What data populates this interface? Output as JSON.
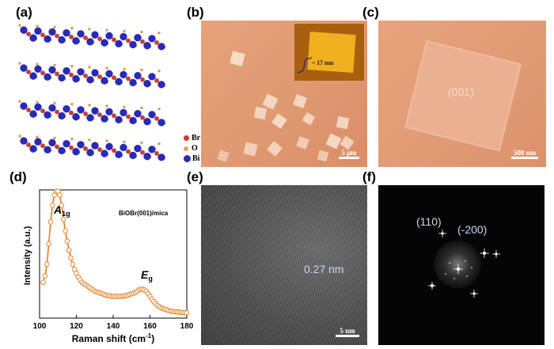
{
  "panels": {
    "a": {
      "label": "(a)",
      "legend": [
        {
          "symbol": "Br",
          "color": "#d43a2a"
        },
        {
          "symbol": "O",
          "color": "#e8a060"
        },
        {
          "symbol": "Bi",
          "color": "#2a2ab8"
        }
      ]
    },
    "b": {
      "label": "(b)",
      "inset_height": "~ 17 nm",
      "scale_bar": "5 μm"
    },
    "c": {
      "label": "(c)",
      "facet": "(001)",
      "scale_bar": "500 nm"
    },
    "d": {
      "label": "(d)"
    },
    "e": {
      "label": "(e)",
      "lattice_spacing": "0.27 nm",
      "scale_bar": "5 nm"
    },
    "f": {
      "label": "(f)",
      "spot_1": "(110)",
      "spot_2": "(-200)"
    }
  },
  "chart_data": {
    "type": "line",
    "annotation": "BiOBr(001)/mica",
    "peaks": [
      {
        "name": "A",
        "sub": "1g",
        "x": 110
      },
      {
        "name": "E",
        "sub": "g",
        "x": 155
      }
    ],
    "xlabel": "Raman shift (cm",
    "xlabel_sup": "-1",
    "xlabel_end": ")",
    "ylabel": "Intensity (a.u.)",
    "xlim": [
      100,
      180
    ],
    "ylim": [
      0,
      1
    ],
    "xticks": [
      "100",
      "120",
      "140",
      "160",
      "180"
    ],
    "series": [
      {
        "color": "#e07d20",
        "x": [
          102,
          103,
          104,
          105,
          106,
          107,
          108,
          109,
          110,
          111,
          112,
          113,
          114,
          115,
          116,
          117,
          118,
          119,
          120,
          121,
          122,
          123,
          124,
          125,
          126,
          127,
          128,
          129,
          130,
          131,
          132,
          133,
          134,
          135,
          136,
          137,
          138,
          139,
          140,
          141,
          142,
          143,
          144,
          145,
          146,
          147,
          148,
          149,
          150,
          151,
          152,
          153,
          154,
          155,
          156,
          157,
          158,
          159,
          160,
          161,
          162,
          163,
          164,
          165,
          166,
          167,
          168,
          169,
          170,
          171,
          172,
          173,
          174,
          175,
          176,
          177,
          178,
          179,
          180
        ],
        "values": [
          0.28,
          0.33,
          0.42,
          0.58,
          0.75,
          0.88,
          0.96,
          0.99,
          0.99,
          0.96,
          0.88,
          0.77,
          0.68,
          0.6,
          0.53,
          0.47,
          0.42,
          0.38,
          0.35,
          0.32,
          0.3,
          0.28,
          0.27,
          0.26,
          0.25,
          0.24,
          0.23,
          0.22,
          0.21,
          0.205,
          0.2,
          0.195,
          0.19,
          0.185,
          0.18,
          0.175,
          0.175,
          0.17,
          0.17,
          0.17,
          0.17,
          0.17,
          0.17,
          0.17,
          0.175,
          0.175,
          0.18,
          0.185,
          0.19,
          0.195,
          0.2,
          0.21,
          0.22,
          0.225,
          0.225,
          0.22,
          0.21,
          0.19,
          0.17,
          0.15,
          0.13,
          0.115,
          0.1,
          0.09,
          0.08,
          0.075,
          0.07,
          0.065,
          0.06,
          0.055,
          0.055,
          0.05,
          0.05,
          0.048,
          0.046,
          0.045,
          0.044,
          0.043,
          0.042
        ]
      }
    ]
  }
}
